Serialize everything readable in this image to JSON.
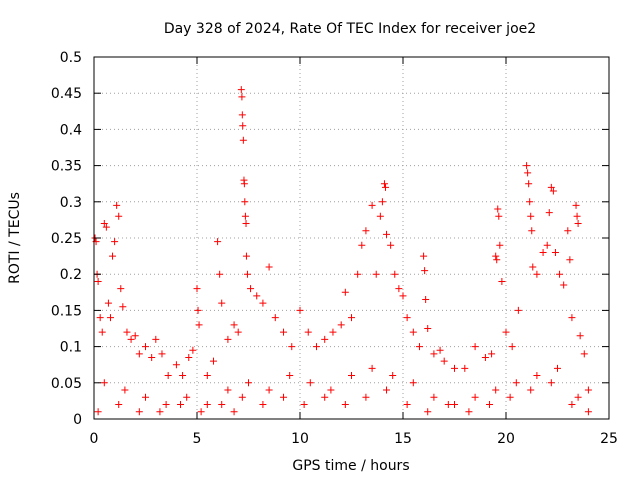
{
  "chart_data": {
    "type": "scatter",
    "title": "Day 328 of 2024, Rate Of TEC Index for receiver joe2",
    "xlabel": "GPS time / hours",
    "ylabel": "ROTI / TECUs",
    "xlim": [
      0,
      25
    ],
    "ylim": [
      0,
      0.5
    ],
    "xticks": [
      "0",
      "5",
      "10",
      "15",
      "20",
      "25"
    ],
    "yticks": [
      "0",
      "0.05",
      "0.1",
      "0.15",
      "0.2",
      "0.25",
      "0.3",
      "0.35",
      "0.4",
      "0.45",
      "0.5"
    ],
    "grid": true,
    "marker": "+",
    "color": "#ff0000",
    "series": [
      {
        "points": [
          [
            0.05,
            0.25
          ],
          [
            0.1,
            0.245
          ],
          [
            0.15,
            0.2
          ],
          [
            0.2,
            0.19
          ],
          [
            0.3,
            0.14
          ],
          [
            0.4,
            0.12
          ],
          [
            0.5,
            0.27
          ],
          [
            0.6,
            0.265
          ],
          [
            0.7,
            0.16
          ],
          [
            0.8,
            0.14
          ],
          [
            0.9,
            0.225
          ],
          [
            1.0,
            0.245
          ],
          [
            1.1,
            0.295
          ],
          [
            1.2,
            0.28
          ],
          [
            1.3,
            0.18
          ],
          [
            1.4,
            0.155
          ],
          [
            1.6,
            0.12
          ],
          [
            1.8,
            0.11
          ],
          [
            2.0,
            0.115
          ],
          [
            2.2,
            0.09
          ],
          [
            2.5,
            0.1
          ],
          [
            2.8,
            0.085
          ],
          [
            3.0,
            0.11
          ],
          [
            3.3,
            0.09
          ],
          [
            3.6,
            0.06
          ],
          [
            4.0,
            0.075
          ],
          [
            4.3,
            0.06
          ],
          [
            4.6,
            0.085
          ],
          [
            4.8,
            0.095
          ],
          [
            5.0,
            0.18
          ],
          [
            5.05,
            0.15
          ],
          [
            5.1,
            0.13
          ],
          [
            5.5,
            0.06
          ],
          [
            5.8,
            0.08
          ],
          [
            6.0,
            0.245
          ],
          [
            6.1,
            0.2
          ],
          [
            6.2,
            0.16
          ],
          [
            6.5,
            0.11
          ],
          [
            6.8,
            0.13
          ],
          [
            7.0,
            0.12
          ],
          [
            7.15,
            0.455
          ],
          [
            7.18,
            0.445
          ],
          [
            7.2,
            0.42
          ],
          [
            7.22,
            0.405
          ],
          [
            7.25,
            0.385
          ],
          [
            7.28,
            0.33
          ],
          [
            7.3,
            0.325
          ],
          [
            7.32,
            0.3
          ],
          [
            7.35,
            0.28
          ],
          [
            7.38,
            0.27
          ],
          [
            7.4,
            0.225
          ],
          [
            7.45,
            0.2
          ],
          [
            7.6,
            0.18
          ],
          [
            7.9,
            0.17
          ],
          [
            8.2,
            0.16
          ],
          [
            8.5,
            0.21
          ],
          [
            8.8,
            0.14
          ],
          [
            9.2,
            0.12
          ],
          [
            9.6,
            0.1
          ],
          [
            10.0,
            0.15
          ],
          [
            10.4,
            0.12
          ],
          [
            10.8,
            0.1
          ],
          [
            11.2,
            0.11
          ],
          [
            11.6,
            0.12
          ],
          [
            12.0,
            0.13
          ],
          [
            12.2,
            0.175
          ],
          [
            12.5,
            0.14
          ],
          [
            12.8,
            0.2
          ],
          [
            13.0,
            0.24
          ],
          [
            13.2,
            0.26
          ],
          [
            13.5,
            0.295
          ],
          [
            13.7,
            0.2
          ],
          [
            13.9,
            0.28
          ],
          [
            14.0,
            0.3
          ],
          [
            14.1,
            0.325
          ],
          [
            14.15,
            0.32
          ],
          [
            14.2,
            0.255
          ],
          [
            14.4,
            0.24
          ],
          [
            14.6,
            0.2
          ],
          [
            14.8,
            0.18
          ],
          [
            15.0,
            0.17
          ],
          [
            15.2,
            0.14
          ],
          [
            15.5,
            0.12
          ],
          [
            15.8,
            0.1
          ],
          [
            16.0,
            0.225
          ],
          [
            16.05,
            0.205
          ],
          [
            16.1,
            0.165
          ],
          [
            16.2,
            0.125
          ],
          [
            16.5,
            0.09
          ],
          [
            16.8,
            0.095
          ],
          [
            17.0,
            0.08
          ],
          [
            17.5,
            0.07
          ],
          [
            18.0,
            0.07
          ],
          [
            18.5,
            0.1
          ],
          [
            19.0,
            0.085
          ],
          [
            19.3,
            0.09
          ],
          [
            19.5,
            0.225
          ],
          [
            19.55,
            0.22
          ],
          [
            19.6,
            0.29
          ],
          [
            19.65,
            0.28
          ],
          [
            19.7,
            0.24
          ],
          [
            19.8,
            0.19
          ],
          [
            20.0,
            0.12
          ],
          [
            20.3,
            0.1
          ],
          [
            20.6,
            0.15
          ],
          [
            21.0,
            0.35
          ],
          [
            21.05,
            0.34
          ],
          [
            21.1,
            0.325
          ],
          [
            21.15,
            0.3
          ],
          [
            21.2,
            0.28
          ],
          [
            21.25,
            0.26
          ],
          [
            21.3,
            0.21
          ],
          [
            21.5,
            0.2
          ],
          [
            21.8,
            0.23
          ],
          [
            22.0,
            0.24
          ],
          [
            22.1,
            0.285
          ],
          [
            22.2,
            0.32
          ],
          [
            22.3,
            0.315
          ],
          [
            22.4,
            0.23
          ],
          [
            22.6,
            0.2
          ],
          [
            22.8,
            0.185
          ],
          [
            23.0,
            0.26
          ],
          [
            23.1,
            0.22
          ],
          [
            23.2,
            0.14
          ],
          [
            23.4,
            0.295
          ],
          [
            23.45,
            0.28
          ],
          [
            23.5,
            0.27
          ],
          [
            23.6,
            0.115
          ],
          [
            23.8,
            0.09
          ],
          [
            24.0,
            0.04
          ],
          [
            0.5,
            0.05
          ],
          [
            1.5,
            0.04
          ],
          [
            2.5,
            0.03
          ],
          [
            3.5,
            0.02
          ],
          [
            4.5,
            0.03
          ],
          [
            5.5,
            0.02
          ],
          [
            6.5,
            0.04
          ],
          [
            7.5,
            0.05
          ],
          [
            8.5,
            0.04
          ],
          [
            9.5,
            0.06
          ],
          [
            10.5,
            0.05
          ],
          [
            11.5,
            0.04
          ],
          [
            12.5,
            0.06
          ],
          [
            13.5,
            0.07
          ],
          [
            14.5,
            0.06
          ],
          [
            15.5,
            0.05
          ],
          [
            16.5,
            0.03
          ],
          [
            17.5,
            0.02
          ],
          [
            18.5,
            0.03
          ],
          [
            19.5,
            0.04
          ],
          [
            20.5,
            0.05
          ],
          [
            21.5,
            0.06
          ],
          [
            22.5,
            0.07
          ],
          [
            23.5,
            0.03
          ],
          [
            0.2,
            0.01
          ],
          [
            1.2,
            0.02
          ],
          [
            2.2,
            0.01
          ],
          [
            3.2,
            0.01
          ],
          [
            4.2,
            0.02
          ],
          [
            5.2,
            0.01
          ],
          [
            6.2,
            0.02
          ],
          [
            7.2,
            0.03
          ],
          [
            8.2,
            0.02
          ],
          [
            9.2,
            0.03
          ],
          [
            10.2,
            0.02
          ],
          [
            11.2,
            0.03
          ],
          [
            12.2,
            0.02
          ],
          [
            13.2,
            0.03
          ],
          [
            14.2,
            0.04
          ],
          [
            15.2,
            0.02
          ],
          [
            16.2,
            0.01
          ],
          [
            17.2,
            0.02
          ],
          [
            18.2,
            0.01
          ],
          [
            19.2,
            0.02
          ],
          [
            20.2,
            0.03
          ],
          [
            21.2,
            0.04
          ],
          [
            22.2,
            0.05
          ],
          [
            23.2,
            0.02
          ],
          [
            24.0,
            0.01
          ],
          [
            6.8,
            0.01
          ]
        ]
      }
    ]
  }
}
